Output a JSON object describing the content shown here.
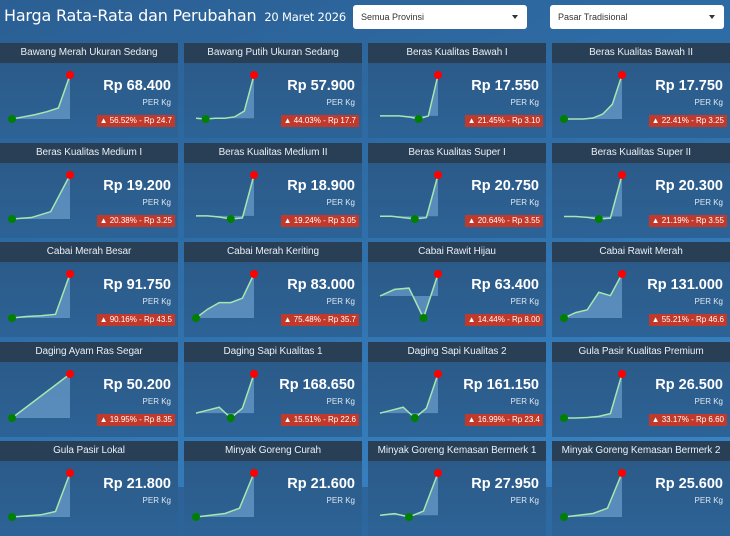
{
  "header": {
    "title": "Harga Rata-Rata dan Perubahan",
    "date": "20 Maret 2026"
  },
  "filters": {
    "province": "Semua Provinsi",
    "market": "Pasar Tradisional"
  },
  "colors": {
    "up_badge": "#c0392b",
    "max_dot": "#ff0000",
    "min_dot": "#008000",
    "line": "#a8e6b0"
  },
  "cards": [
    {
      "name": "Bawang Merah Ukuran Sedang",
      "price": "Rp 68.400",
      "unit": "PER Kg",
      "change": "▲ 56.52% - Rp 24.7",
      "trend": [
        0,
        3,
        6,
        10,
        15,
        60
      ]
    },
    {
      "name": "Bawang Putih Ukuran Sedang",
      "price": "Rp 57.900",
      "unit": "PER Kg",
      "change": "▲ 44.03% - Rp 17.7",
      "trend": [
        10,
        9,
        10,
        10,
        12,
        20,
        70
      ]
    },
    {
      "name": "Beras Kualitas Bawah I",
      "price": "Rp 17.550",
      "unit": "PER Kg",
      "change": "▲ 21.45% - Rp 3.10",
      "trend": [
        20,
        20,
        20,
        19,
        17,
        20,
        60
      ]
    },
    {
      "name": "Beras Kualitas Bawah II",
      "price": "Rp 17.750",
      "unit": "PER Kg",
      "change": "▲ 22.41% - Rp 3.25",
      "trend": [
        0,
        0,
        0,
        2,
        10,
        30,
        90
      ]
    },
    {
      "name": "Beras Kualitas Medium I",
      "price": "Rp 19.200",
      "unit": "PER Kg",
      "change": "▲ 20.38% - Rp 3.25",
      "trend": [
        10,
        12,
        20,
        70
      ]
    },
    {
      "name": "Beras Kualitas Medium II",
      "price": "Rp 18.900",
      "unit": "PER Kg",
      "change": "▲ 19.24% - Rp 3.05",
      "trend": [
        20,
        20,
        19,
        17,
        18,
        60
      ]
    },
    {
      "name": "Beras Kualitas Super I",
      "price": "Rp 20.750",
      "unit": "PER Kg",
      "change": "▲ 20.64% - Rp 3.55",
      "trend": [
        20,
        20,
        18,
        16,
        18,
        80
      ]
    },
    {
      "name": "Beras Kualitas Super II",
      "price": "Rp 20.300",
      "unit": "PER Kg",
      "change": "▲ 21.19% - Rp 3.55",
      "trend": [
        20,
        20,
        19,
        17,
        18,
        70
      ]
    },
    {
      "name": "Cabai Merah Besar",
      "price": "Rp 91.750",
      "unit": "PER Kg",
      "change": "▲ 90.16% - Rp 43.5",
      "trend": [
        10,
        12,
        13,
        15,
        70
      ]
    },
    {
      "name": "Cabai Merah Keriting",
      "price": "Rp 83.000",
      "unit": "PER Kg",
      "change": "▲ 75.48% - Rp 35.7",
      "trend": [
        0,
        20,
        35,
        35,
        45,
        100
      ]
    },
    {
      "name": "Cabai Rawit Hijau",
      "price": "Rp 63.400",
      "unit": "PER Kg",
      "change": "▲ 14.44% - Rp 8.00",
      "trend": [
        50,
        65,
        68,
        0,
        100
      ]
    },
    {
      "name": "Cabai Rawit Merah",
      "price": "Rp 131.000",
      "unit": "PER Kg",
      "change": "▲ 55.21% - Rp 46.6",
      "trend": [
        0,
        8,
        12,
        38,
        33,
        65
      ]
    },
    {
      "name": "Daging Ayam Ras Segar",
      "price": "Rp 50.200",
      "unit": "PER Kg",
      "change": "▲ 19.95% - Rp 8.35",
      "trend": [
        0,
        25,
        50,
        75,
        100
      ]
    },
    {
      "name": "Daging Sapi Kualitas 1",
      "price": "Rp 168.650",
      "unit": "PER Kg",
      "change": "▲ 15.51% - Rp 22.6",
      "trend": [
        30,
        33,
        36,
        25,
        35,
        70
      ]
    },
    {
      "name": "Daging Sapi Kualitas 2",
      "price": "Rp 161.150",
      "unit": "PER Kg",
      "change": "▲ 16.99% - Rp 23.4",
      "trend": [
        30,
        33,
        36,
        25,
        35,
        70
      ]
    },
    {
      "name": "Gula Pasir Kualitas Premium",
      "price": "Rp 26.500",
      "unit": "PER Kg",
      "change": "▲ 33.17% - Rp 6.60",
      "trend": [
        0,
        0,
        1,
        3,
        8,
        80
      ]
    },
    {
      "name": "Gula Pasir Lokal",
      "price": "Rp 21.800",
      "unit": "PER Kg",
      "change": "",
      "trend": [
        10,
        12,
        14,
        20,
        90
      ]
    },
    {
      "name": "Minyak Goreng Curah",
      "price": "Rp 21.600",
      "unit": "PER Kg",
      "change": "",
      "trend": [
        10,
        12,
        14,
        20,
        60
      ]
    },
    {
      "name": "Minyak Goreng Kemasan Bermerk 1",
      "price": "Rp 27.950",
      "unit": "PER Kg",
      "change": "",
      "trend": [
        20,
        22,
        18,
        25,
        70
      ]
    },
    {
      "name": "Minyak Goreng Kemasan Bermerk 2",
      "price": "Rp 25.600",
      "unit": "PER Kg",
      "change": "",
      "trend": [
        10,
        12,
        14,
        20,
        60
      ]
    }
  ]
}
